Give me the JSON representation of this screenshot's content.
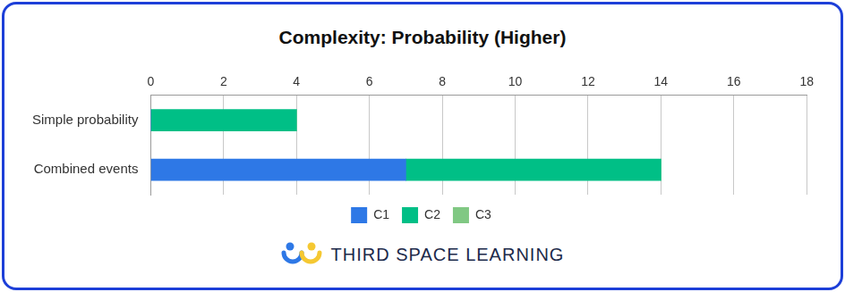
{
  "chart_data": {
    "type": "bar",
    "title": "Complexity: Probability (Higher)",
    "orientation": "horizontal",
    "stacked": true,
    "categories": [
      "Simple probability",
      "Combined events"
    ],
    "series": [
      {
        "name": "C1",
        "color": "#2e78e6",
        "values": [
          0,
          7
        ]
      },
      {
        "name": "C2",
        "color": "#00bf86",
        "values": [
          4,
          7
        ]
      },
      {
        "name": "C3",
        "color": "#80c883",
        "values": [
          0,
          0
        ]
      }
    ],
    "xlim": [
      0,
      18
    ],
    "xticks": [
      0,
      2,
      4,
      6,
      8,
      10,
      12,
      14,
      16,
      18
    ],
    "grid": true,
    "legend": "bottom"
  },
  "footer": {
    "text": "THIRD SPACE LEARNING"
  }
}
